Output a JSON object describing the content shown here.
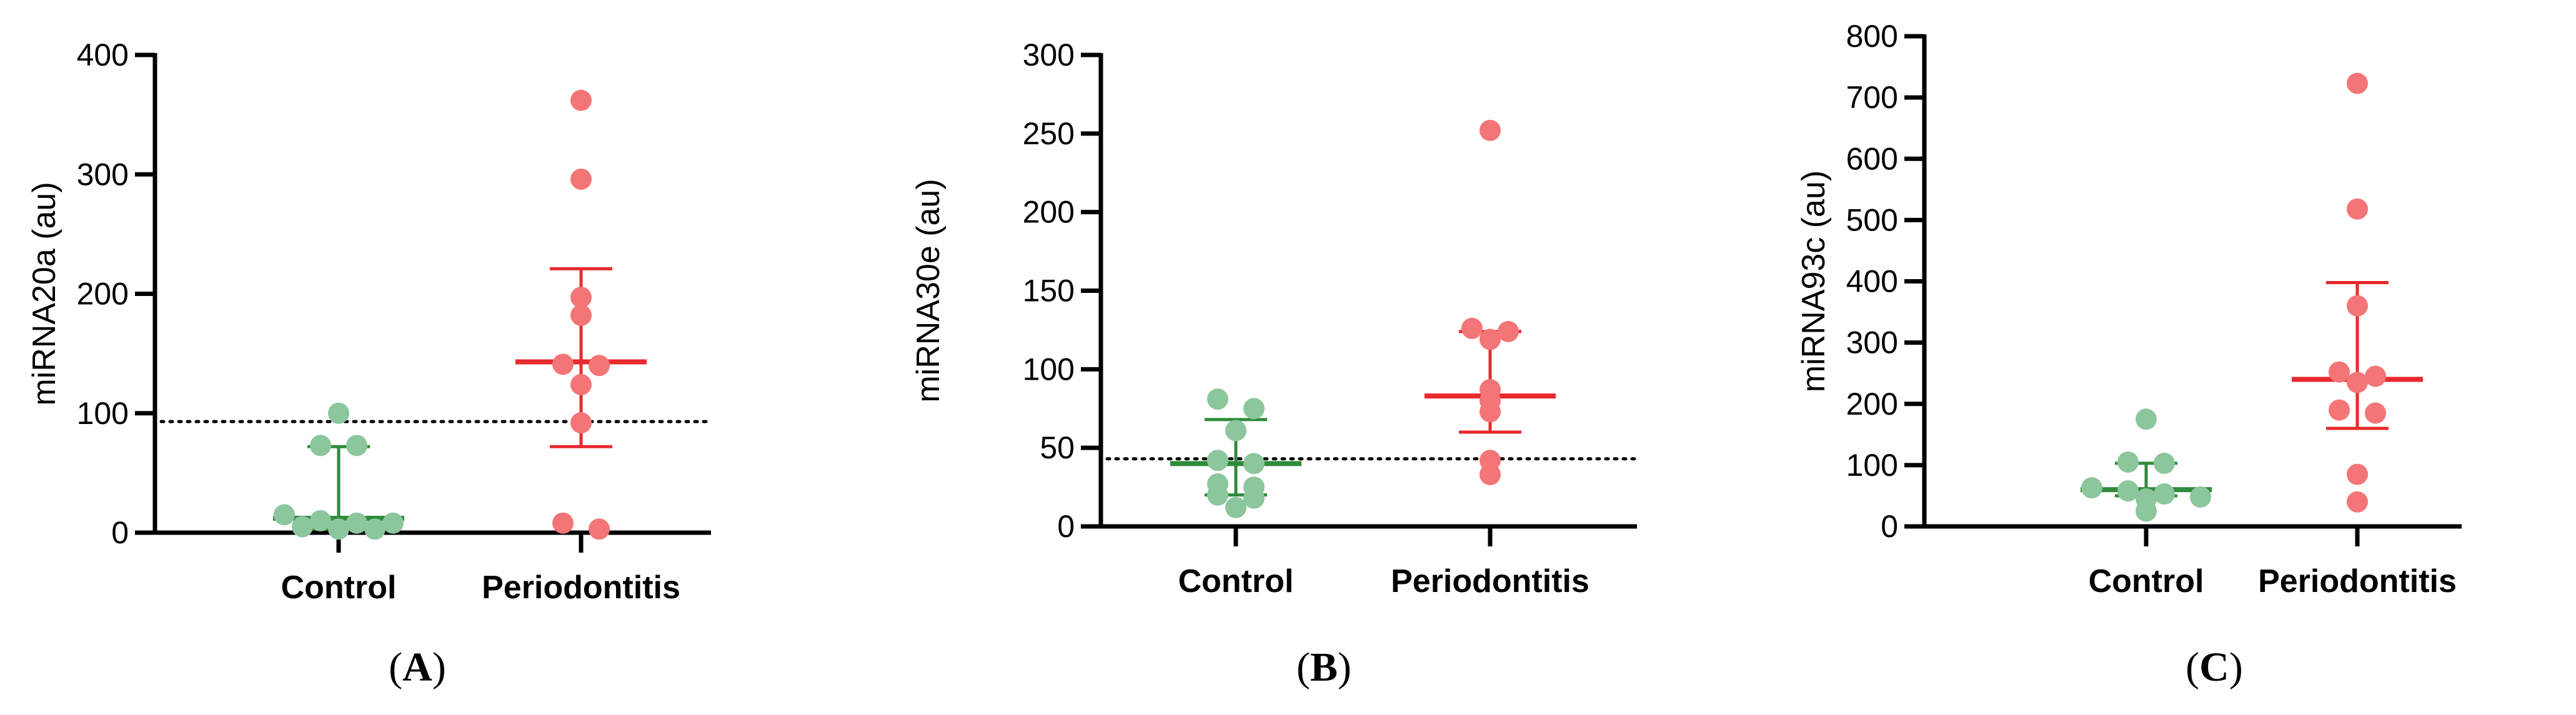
{
  "chart_data": [
    {
      "type": "scatter",
      "panel": "(A)",
      "panel_letter": "A",
      "ylabel": "miRNA20a (au)",
      "ylim": [
        0,
        400
      ],
      "yticks": [
        0,
        100,
        200,
        300,
        400
      ],
      "reference_line": 93,
      "categories": [
        "Control",
        "Periodontitis"
      ],
      "series": [
        {
          "name": "Control",
          "color": "#8cc69c",
          "line_color": "#2e8b3a",
          "values": [
            100,
            73,
            73,
            15,
            10,
            8,
            8,
            5,
            3,
            3
          ],
          "median": 12,
          "lower": 3,
          "upper": 72
        },
        {
          "name": "Periodontitis",
          "color": "#f47577",
          "line_color": "#e8292e",
          "values": [
            362,
            296,
            197,
            182,
            141,
            140,
            124,
            92,
            8,
            3
          ],
          "median": 143,
          "lower": 72,
          "upper": 221
        }
      ]
    },
    {
      "type": "scatter",
      "panel": "(B)",
      "panel_letter": "B",
      "ylabel": "miRNA30e (au)",
      "ylim": [
        0,
        300
      ],
      "yticks": [
        0,
        50,
        100,
        150,
        200,
        250,
        300
      ],
      "reference_line": 43,
      "categories": [
        "Control",
        "Periodontitis"
      ],
      "series": [
        {
          "name": "Control",
          "color": "#8cc69c",
          "line_color": "#2e8b3a",
          "values": [
            81,
            75,
            61,
            42,
            40,
            27,
            25,
            20,
            18,
            12
          ],
          "median": 40,
          "lower": 20,
          "upper": 68
        },
        {
          "name": "Periodontitis",
          "color": "#f47577",
          "line_color": "#e8292e",
          "values": [
            252,
            126,
            124,
            119,
            87,
            80,
            73,
            42,
            33
          ],
          "median": 83,
          "lower": 60,
          "upper": 124
        }
      ]
    },
    {
      "type": "scatter",
      "panel": "(C)",
      "panel_letter": "C",
      "ylabel": "miRNA93c (au)",
      "ylim": [
        0,
        800
      ],
      "yticks": [
        0,
        100,
        200,
        300,
        400,
        500,
        600,
        700,
        800
      ],
      "reference_line": null,
      "categories": [
        "Control",
        "Periodontitis"
      ],
      "series": [
        {
          "name": "Control",
          "color": "#8cc69c",
          "line_color": "#2e8b3a",
          "values": [
            175,
            105,
            103,
            63,
            58,
            53,
            48,
            45,
            25
          ],
          "median": 60,
          "lower": 50,
          "upper": 103
        },
        {
          "name": "Periodontitis",
          "color": "#f47577",
          "line_color": "#e8292e",
          "values": [
            723,
            518,
            360,
            252,
            245,
            235,
            190,
            185,
            85,
            40
          ],
          "median": 240,
          "lower": 160,
          "upper": 398
        }
      ]
    }
  ]
}
